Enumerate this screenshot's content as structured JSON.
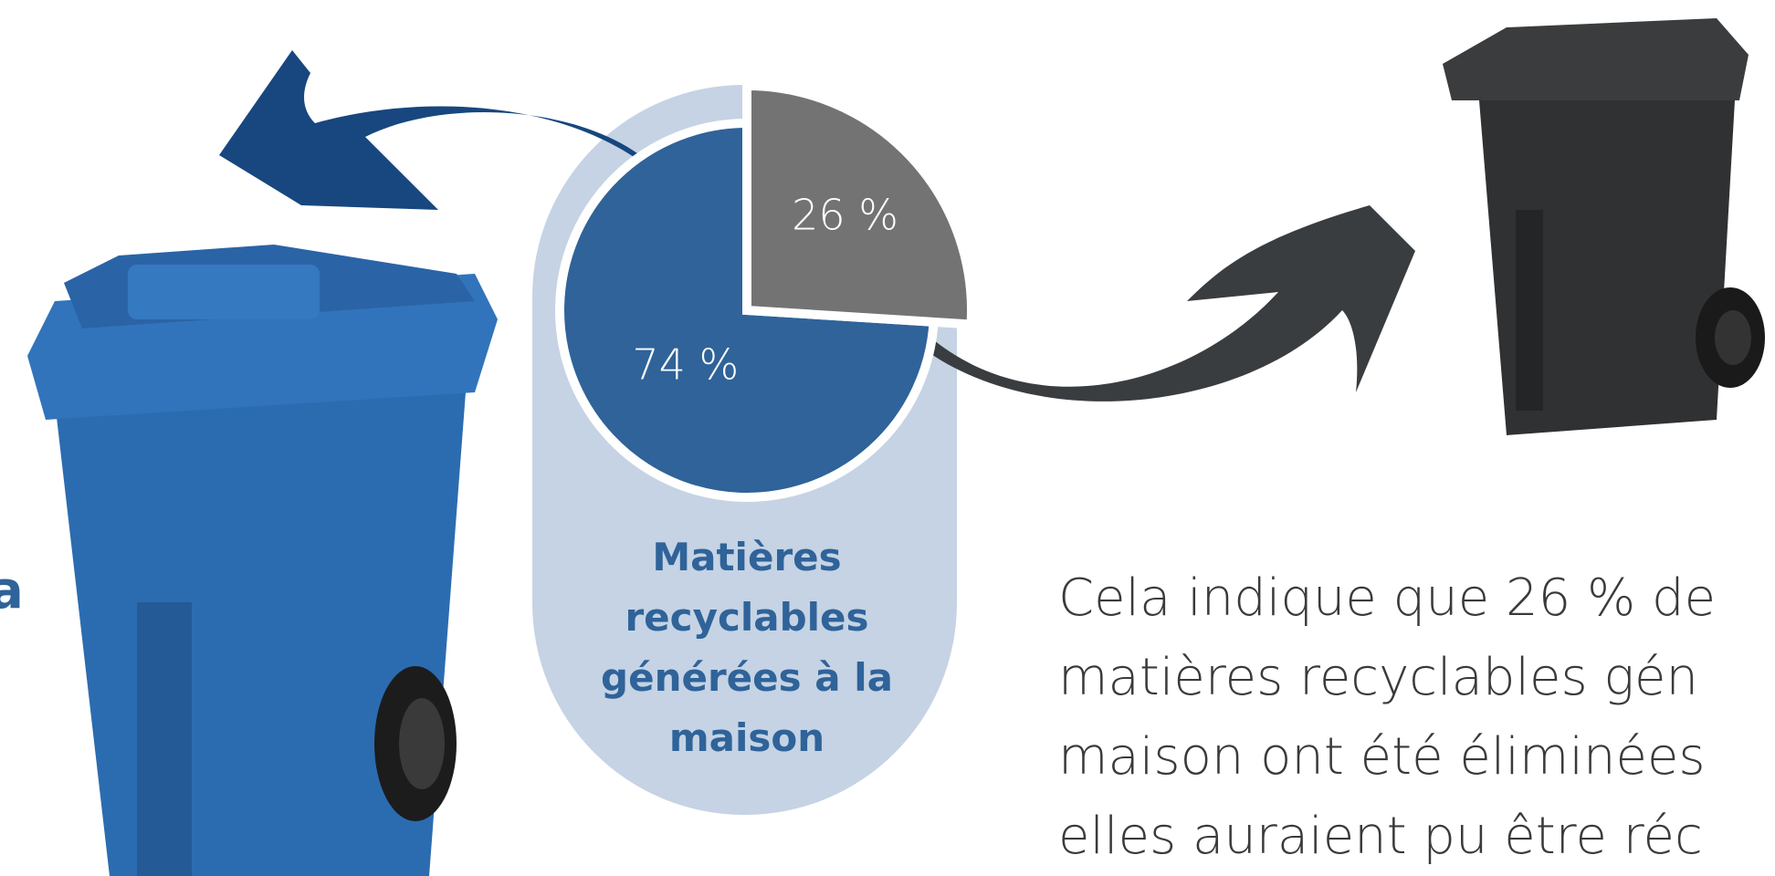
{
  "chart_data": {
    "type": "pie",
    "title": "Matières recyclables générées à la maison",
    "values": [
      26,
      74
    ],
    "value_labels": [
      "26 %",
      "74 %"
    ],
    "colors": [
      "#737373",
      "#2f6399"
    ]
  },
  "side_text": "a",
  "paragraph": [
    "Cela indique que 26 % de",
    "matières recyclables gén",
    "maison ont été éliminées",
    "elles auraient pu être réc"
  ]
}
